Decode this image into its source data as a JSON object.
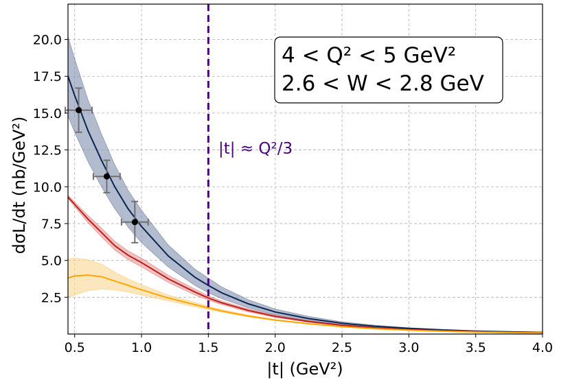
{
  "chart_data": {
    "type": "line",
    "xlabel": "|t| (GeV²)",
    "ylabel": "dσL/dt (nb/GeV²)",
    "xlim": [
      0.45,
      4.0
    ],
    "ylim": [
      0.0,
      22.4
    ],
    "xticks": [
      0.5,
      1.0,
      1.5,
      2.0,
      2.5,
      3.0,
      3.5,
      4.0
    ],
    "xtick_labels": [
      "0.5",
      "1.0",
      "1.5",
      "2.0",
      "2.5",
      "3.0",
      "3.5",
      "4.0"
    ],
    "yticks": [
      2.5,
      5.0,
      7.5,
      10.0,
      12.5,
      15.0,
      17.5,
      20.0
    ],
    "ytick_labels": [
      "2.5",
      "5.0",
      "7.5",
      "10.0",
      "12.5",
      "15.0",
      "17.5",
      "20.0"
    ],
    "grid": true,
    "annotation_box": {
      "line1": "4 < Q² < 5 GeV²",
      "line2": "2.6 < W < 2.8 GeV"
    },
    "vline": {
      "x": 1.5,
      "label": "|t| ≈ Q²/3",
      "color": "#4b0082"
    },
    "points": [
      {
        "x": 0.53,
        "y": 15.2,
        "xerr": 0.1,
        "yerr": 1.5
      },
      {
        "x": 0.74,
        "y": 10.7,
        "xerr": 0.1,
        "yerr": 1.1
      },
      {
        "x": 0.95,
        "y": 7.6,
        "xerr": 0.1,
        "yerr": 1.4
      }
    ],
    "series": [
      {
        "name": "navy",
        "color": "#0b2550",
        "band_color": "#8b97b4",
        "x": [
          0.45,
          0.5,
          0.6,
          0.7,
          0.8,
          0.9,
          1.0,
          1.2,
          1.4,
          1.5,
          1.6,
          1.8,
          2.0,
          2.25,
          2.5,
          2.75,
          3.0,
          3.25,
          3.5,
          3.75,
          4.0
        ],
        "y": [
          17.5,
          16.2,
          13.8,
          11.8,
          10.0,
          8.5,
          7.3,
          5.3,
          3.85,
          3.3,
          2.8,
          2.05,
          1.5,
          1.05,
          0.73,
          0.52,
          0.38,
          0.28,
          0.2,
          0.15,
          0.11
        ],
        "lower": [
          14.8,
          13.7,
          11.7,
          10.0,
          8.5,
          7.25,
          6.2,
          4.55,
          3.3,
          2.8,
          2.4,
          1.77,
          1.3,
          0.9,
          0.63,
          0.45,
          0.33,
          0.24,
          0.17,
          0.13,
          0.09
        ],
        "upper": [
          20.2,
          18.7,
          15.9,
          13.6,
          11.5,
          9.75,
          8.4,
          6.05,
          4.4,
          3.8,
          3.2,
          2.33,
          1.7,
          1.2,
          0.83,
          0.6,
          0.43,
          0.32,
          0.23,
          0.17,
          0.13
        ]
      },
      {
        "name": "red",
        "color": "#c0201a",
        "band_color": "#e8a0a0",
        "x": [
          0.45,
          0.5,
          0.6,
          0.7,
          0.8,
          0.9,
          1.0,
          1.2,
          1.4,
          1.5,
          1.6,
          1.8,
          2.0,
          2.25,
          2.5,
          2.75,
          3.0,
          3.25,
          3.5,
          3.75,
          4.0
        ],
        "y": [
          9.3,
          8.8,
          7.8,
          6.9,
          6.0,
          5.35,
          4.85,
          3.75,
          2.85,
          2.45,
          2.12,
          1.6,
          1.2,
          0.85,
          0.6,
          0.42,
          0.3,
          0.22,
          0.16,
          0.12,
          0.09
        ],
        "lower": [
          9.2,
          8.65,
          7.55,
          6.6,
          5.7,
          5.05,
          4.55,
          3.5,
          2.65,
          2.3,
          2.0,
          1.5,
          1.13,
          0.8,
          0.56,
          0.39,
          0.28,
          0.2,
          0.15,
          0.11,
          0.08
        ],
        "upper": [
          9.45,
          8.95,
          8.05,
          7.2,
          6.3,
          5.65,
          5.15,
          4.0,
          3.05,
          2.6,
          2.25,
          1.7,
          1.27,
          0.9,
          0.64,
          0.45,
          0.32,
          0.24,
          0.17,
          0.13,
          0.1
        ]
      },
      {
        "name": "orange",
        "color": "#ffa500",
        "band_color": "#fbd89a",
        "x": [
          0.45,
          0.5,
          0.6,
          0.7,
          0.8,
          0.9,
          1.0,
          1.2,
          1.4,
          1.5,
          1.6,
          1.8,
          2.0,
          2.25,
          2.5,
          2.75,
          3.0,
          3.25,
          3.5,
          3.75,
          4.0
        ],
        "y": [
          3.8,
          3.95,
          4.0,
          3.9,
          3.6,
          3.3,
          3.0,
          2.45,
          2.0,
          1.78,
          1.57,
          1.22,
          0.95,
          0.7,
          0.5,
          0.36,
          0.26,
          0.19,
          0.14,
          0.1,
          0.08
        ],
        "lower": [
          2.5,
          2.65,
          2.95,
          3.05,
          3.0,
          2.85,
          2.65,
          2.25,
          1.85,
          1.66,
          1.48,
          1.16,
          0.91,
          0.67,
          0.48,
          0.34,
          0.25,
          0.18,
          0.13,
          0.1,
          0.07
        ],
        "upper": [
          5.1,
          5.15,
          5.05,
          4.75,
          4.2,
          3.75,
          3.35,
          2.65,
          2.15,
          1.9,
          1.66,
          1.28,
          0.99,
          0.73,
          0.52,
          0.38,
          0.27,
          0.2,
          0.15,
          0.11,
          0.09
        ]
      }
    ]
  }
}
